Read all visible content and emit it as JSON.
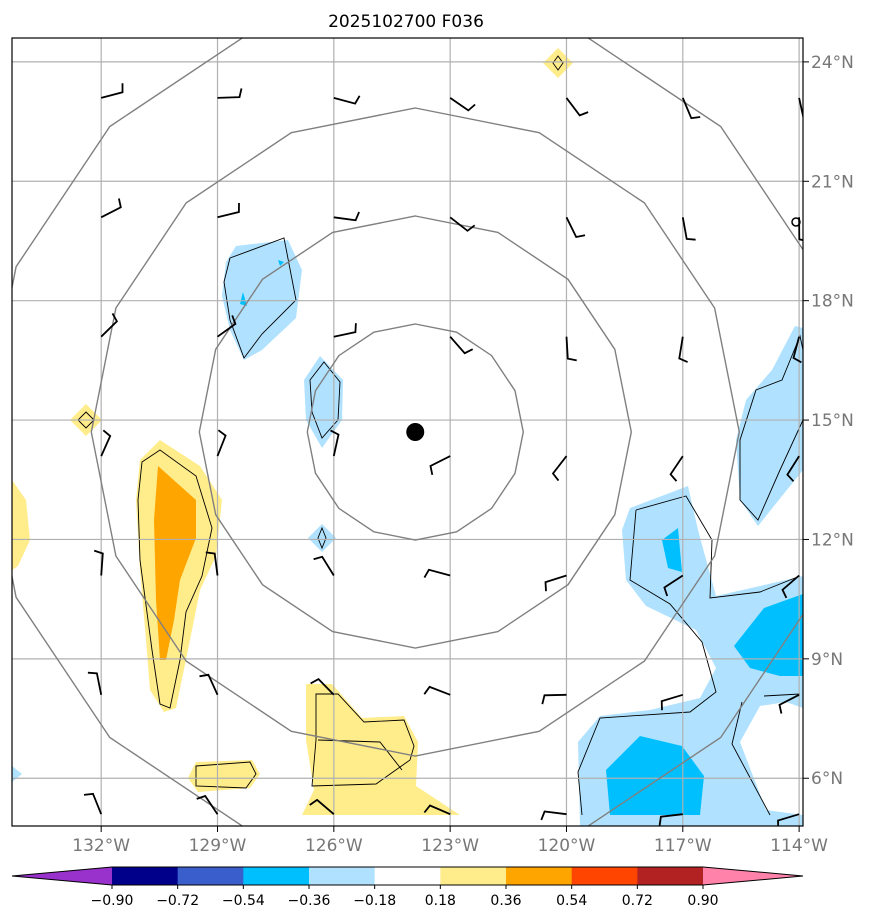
{
  "title": "2025102700 F036",
  "map": {
    "lon_range": [
      -134.3,
      -113.9
    ],
    "lat_range": [
      4.8,
      24.6
    ],
    "lon_ticks": [
      -132,
      -129,
      -126,
      -123,
      -120,
      -117,
      -114
    ],
    "lon_labels": [
      "132°W",
      "129°W",
      "126°W",
      "123°W",
      "120°W",
      "117°W",
      "114°W"
    ],
    "lat_ticks": [
      6,
      9,
      12,
      15,
      18,
      21,
      24
    ],
    "lat_labels": [
      "6°N",
      "9°N",
      "12°N",
      "15°N",
      "18°N",
      "21°N",
      "24°N"
    ],
    "grid": true,
    "storm_center": {
      "lon": -123.9,
      "lat": 14.7
    },
    "range_rings": "concentric circles around storm center",
    "colors": {
      "grid": "#b0b0b0",
      "rings": "#808080",
      "frame": "#000000"
    },
    "wind_barbs": "grid of wind barbs every 3 degrees"
  },
  "colorbar": {
    "levels": [
      "−0.90",
      "−0.72",
      "−0.54",
      "−0.36",
      "−0.18",
      "0.18",
      "0.36",
      "0.54",
      "0.72",
      "0.90"
    ],
    "colors": [
      "#9932cc",
      "#00008b",
      "#3a5fcd",
      "#00bfff",
      "#b0e2ff",
      "#ffffff",
      "#ffec8b",
      "#ffa500",
      "#ff4500",
      "#b22222",
      "#ff82ab"
    ],
    "extend": "both"
  }
}
